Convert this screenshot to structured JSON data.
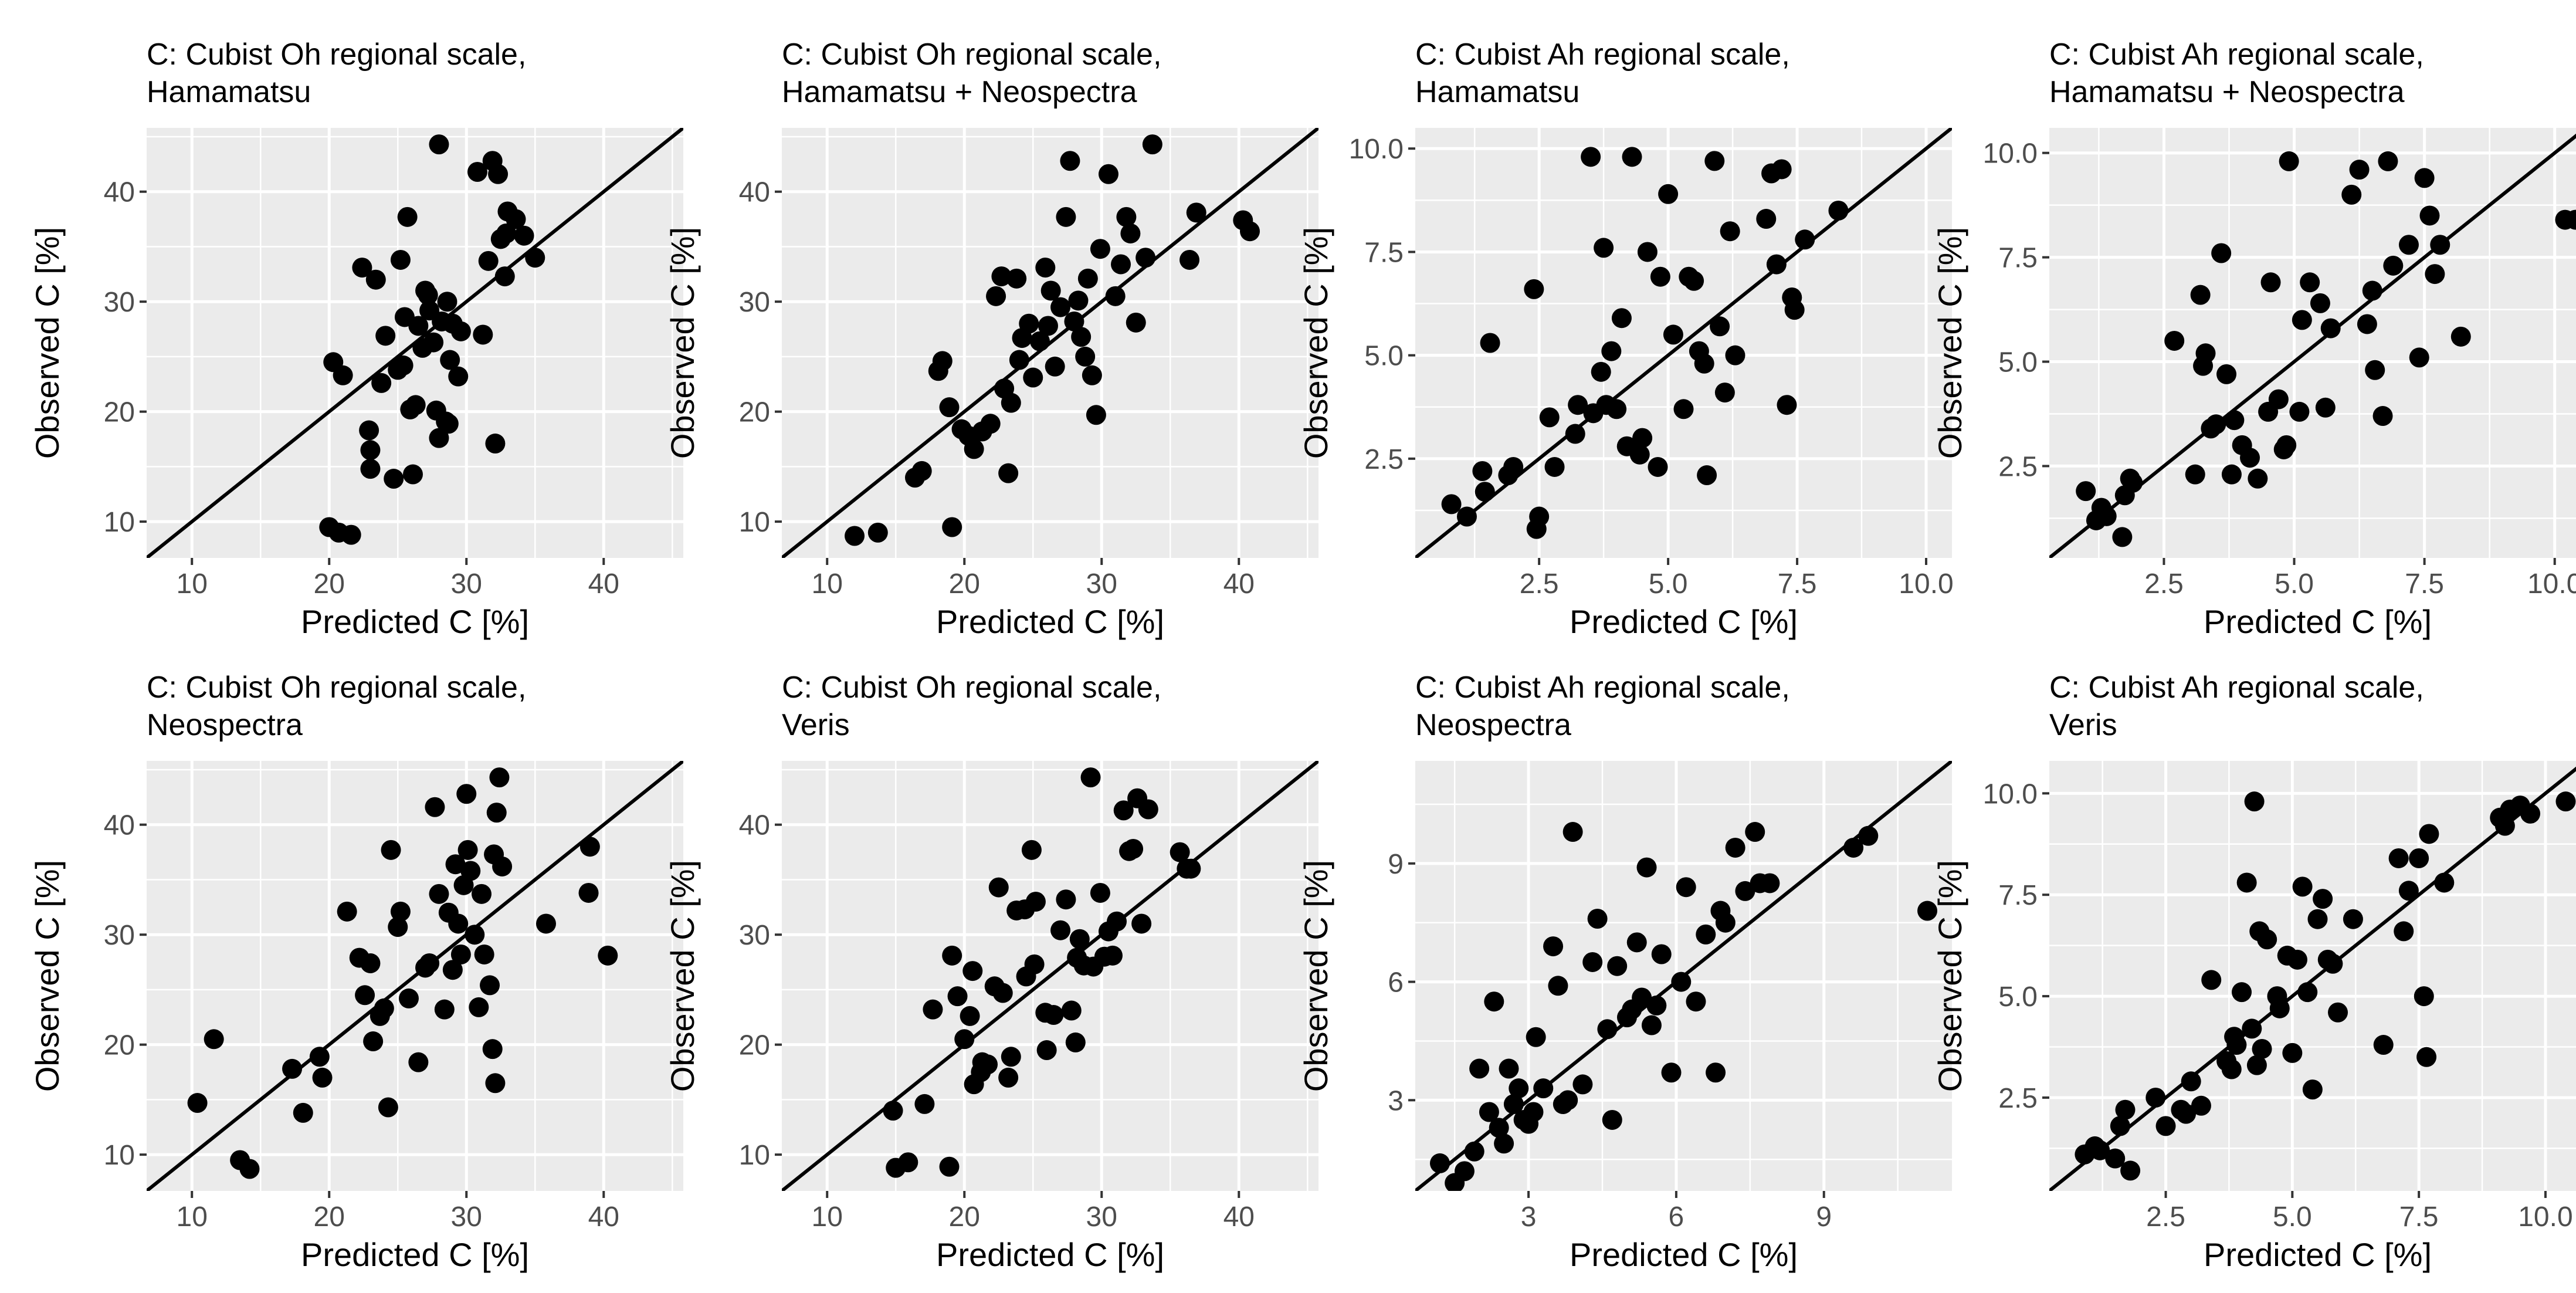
{
  "chart_data": [
    {
      "type": "scatter",
      "title_lines": [
        "C: Cubist Oh regional scale,",
        "Hamamatsu"
      ],
      "xlabel": "Predicted C [%]",
      "ylabel": "Observed C [%]",
      "xlim": [
        6.7,
        45.8
      ],
      "ylim": [
        6.7,
        45.8
      ],
      "xticks": [
        10,
        20,
        30,
        40
      ],
      "yticks": [
        10,
        20,
        30,
        40
      ],
      "xtick_labels": [
        "10",
        "20",
        "30",
        "40"
      ],
      "ytick_labels": [
        "10",
        "20",
        "30",
        "40"
      ],
      "identity_line": true,
      "x": [
        20.0,
        20.7,
        21.6,
        20.3,
        21.0,
        22.4,
        22.9,
        23.0,
        23.0,
        23.4,
        23.8,
        24.1,
        24.7,
        25.0,
        25.2,
        25.7,
        25.4,
        25.5,
        25.9,
        26.1,
        26.3,
        26.5,
        26.8,
        27.0,
        27.2,
        27.3,
        27.6,
        27.8,
        28.0,
        28.0,
        28.2,
        28.5,
        28.6,
        28.7,
        28.8,
        29.0,
        29.4,
        29.6,
        30.8,
        31.2,
        31.6,
        31.9,
        32.1,
        32.3,
        32.5,
        32.8,
        32.9,
        33.0,
        33.6,
        34.2,
        35.0
      ],
      "y": [
        9.5,
        9.0,
        8.8,
        24.5,
        23.3,
        33.1,
        18.3,
        16.5,
        14.8,
        32.0,
        22.6,
        26.9,
        13.9,
        23.8,
        33.8,
        37.7,
        24.2,
        28.6,
        20.2,
        14.3,
        20.6,
        27.8,
        25.8,
        31.0,
        30.6,
        29.2,
        26.3,
        20.1,
        17.6,
        44.3,
        28.2,
        19.1,
        30.0,
        18.9,
        24.7,
        28.0,
        23.2,
        27.3,
        41.8,
        27.0,
        33.7,
        42.8,
        17.1,
        41.6,
        35.7,
        32.3,
        36.2,
        38.2,
        37.5,
        36.0,
        34.0
      ]
    },
    {
      "type": "scatter",
      "title_lines": [
        "C: Cubist Oh regional scale,",
        "Hamamatsu + Neospectra"
      ],
      "xlabel": "Predicted C [%]",
      "ylabel": "Observed C [%]",
      "xlim": [
        6.7,
        45.8
      ],
      "ylim": [
        6.7,
        45.8
      ],
      "xticks": [
        10,
        20,
        30,
        40
      ],
      "yticks": [
        10,
        20,
        30,
        40
      ],
      "xtick_labels": [
        "10",
        "20",
        "30",
        "40"
      ],
      "ytick_labels": [
        "10",
        "20",
        "30",
        "40"
      ],
      "identity_line": true,
      "x": [
        12.0,
        13.7,
        16.4,
        16.9,
        18.1,
        18.4,
        18.9,
        19.1,
        19.8,
        20.3,
        20.7,
        21.3,
        21.9,
        22.3,
        22.7,
        22.9,
        23.2,
        23.4,
        23.8,
        24.0,
        24.2,
        24.7,
        25.0,
        25.5,
        25.9,
        26.1,
        26.3,
        26.6,
        27.0,
        27.4,
        27.7,
        28.0,
        28.3,
        28.5,
        28.8,
        29.0,
        29.3,
        29.6,
        29.9,
        30.5,
        31.0,
        31.4,
        31.8,
        32.1,
        32.5,
        33.2,
        33.7,
        36.4,
        36.9,
        40.3,
        40.8
      ],
      "y": [
        8.7,
        9.0,
        14.0,
        14.6,
        23.7,
        24.6,
        20.4,
        9.5,
        18.4,
        17.8,
        16.6,
        18.2,
        18.9,
        30.5,
        32.3,
        22.1,
        14.4,
        20.8,
        32.1,
        24.7,
        26.7,
        28.0,
        23.1,
        26.4,
        33.1,
        27.8,
        31.0,
        24.1,
        29.5,
        37.7,
        42.8,
        28.2,
        30.1,
        26.8,
        25.0,
        32.1,
        23.3,
        19.7,
        34.8,
        41.6,
        30.5,
        33.4,
        37.7,
        36.2,
        28.1,
        34.0,
        44.3,
        33.8,
        38.1,
        37.4,
        36.4
      ]
    },
    {
      "type": "scatter",
      "title_lines": [
        "C: Cubist Ah regional scale,",
        "Hamamatsu"
      ],
      "xlabel": "Predicted C [%]",
      "ylabel": "Observed C [%]",
      "xlim": [
        0.1,
        10.5
      ],
      "ylim": [
        0.1,
        10.5
      ],
      "xticks": [
        2.5,
        5.0,
        7.5,
        10.0
      ],
      "yticks": [
        2.5,
        5.0,
        7.5,
        10.0
      ],
      "xtick_labels": [
        "2.5",
        "5.0",
        "7.5",
        "10.0"
      ],
      "ytick_labels": [
        "2.5",
        "5.0",
        "7.5",
        "10.0"
      ],
      "identity_line": true,
      "x": [
        0.8,
        1.1,
        1.4,
        1.45,
        1.55,
        1.9,
        2.0,
        2.4,
        2.5,
        2.45,
        2.7,
        2.8,
        3.2,
        3.25,
        3.5,
        3.55,
        3.7,
        3.75,
        3.8,
        3.9,
        4.0,
        4.1,
        4.2,
        4.3,
        4.45,
        4.5,
        4.6,
        4.8,
        4.85,
        5.0,
        5.1,
        5.3,
        5.4,
        5.5,
        5.6,
        5.7,
        5.75,
        5.9,
        6.0,
        6.1,
        6.2,
        6.3,
        6.9,
        7.0,
        7.1,
        7.2,
        7.3,
        7.4,
        7.45,
        7.65,
        8.3
      ],
      "y": [
        1.4,
        1.1,
        2.2,
        1.7,
        5.3,
        2.1,
        2.3,
        6.6,
        1.1,
        0.8,
        3.5,
        2.3,
        3.1,
        3.8,
        9.8,
        3.6,
        4.6,
        7.6,
        3.8,
        5.1,
        3.7,
        5.9,
        2.8,
        9.8,
        2.6,
        3.0,
        7.5,
        2.3,
        6.9,
        8.9,
        5.5,
        3.7,
        6.9,
        6.8,
        5.1,
        4.8,
        2.1,
        9.7,
        5.7,
        4.1,
        8.0,
        5.0,
        8.3,
        9.4,
        7.2,
        9.5,
        3.8,
        6.4,
        6.1,
        7.8,
        8.5
      ]
    },
    {
      "type": "scatter",
      "title_lines": [
        "C: Cubist Ah regional scale,",
        "Hamamatsu + Neospectra"
      ],
      "xlabel": "Predicted C [%]",
      "ylabel": "Observed C [%]",
      "xlim": [
        0.3,
        10.6
      ],
      "ylim": [
        0.3,
        10.6
      ],
      "xticks": [
        2.5,
        5.0,
        7.5,
        10.0
      ],
      "yticks": [
        2.5,
        5.0,
        7.5,
        10.0
      ],
      "xtick_labels": [
        "2.5",
        "5.0",
        "7.5",
        "10.0"
      ],
      "ytick_labels": [
        "2.5",
        "5.0",
        "7.5",
        "10.0"
      ],
      "identity_line": true,
      "x": [
        1.0,
        1.2,
        1.3,
        1.4,
        1.7,
        1.75,
        1.85,
        1.9,
        2.7,
        3.1,
        3.2,
        3.25,
        3.3,
        3.4,
        3.5,
        3.6,
        3.7,
        3.8,
        3.85,
        4.0,
        4.15,
        4.3,
        4.5,
        4.55,
        4.7,
        4.8,
        4.85,
        4.9,
        5.1,
        5.15,
        5.3,
        5.5,
        5.6,
        5.7,
        6.1,
        6.25,
        6.4,
        6.5,
        6.55,
        6.7,
        6.8,
        6.9,
        7.2,
        7.4,
        7.5,
        7.6,
        7.7,
        7.8,
        8.2,
        10.2,
        10.4
      ],
      "y": [
        1.9,
        1.2,
        1.5,
        1.3,
        0.8,
        1.8,
        2.2,
        2.1,
        5.5,
        2.3,
        6.6,
        4.9,
        5.2,
        3.4,
        3.5,
        7.6,
        4.7,
        2.3,
        3.6,
        3.0,
        2.7,
        2.2,
        3.8,
        6.9,
        4.1,
        2.9,
        3.0,
        9.8,
        3.8,
        6.0,
        6.9,
        6.4,
        3.9,
        5.8,
        9.0,
        9.6,
        5.9,
        6.7,
        4.8,
        3.7,
        9.8,
        7.3,
        7.8,
        5.1,
        9.4,
        8.5,
        7.1,
        7.8,
        5.6,
        8.4,
        8.4
      ]
    },
    {
      "type": "scatter",
      "title_lines": [
        "C: Cubist Oh regional scale,",
        "Neospectra"
      ],
      "xlabel": "Predicted C [%]",
      "ylabel": "Observed C [%]",
      "xlim": [
        6.7,
        45.8
      ],
      "ylim": [
        6.7,
        45.8
      ],
      "xticks": [
        10,
        20,
        30,
        40
      ],
      "yticks": [
        10,
        20,
        30,
        40
      ],
      "xtick_labels": [
        "10",
        "20",
        "30",
        "40"
      ],
      "ytick_labels": [
        "10",
        "20",
        "30",
        "40"
      ],
      "identity_line": true,
      "x": [
        10.4,
        11.6,
        13.5,
        14.2,
        17.3,
        18.1,
        19.3,
        19.5,
        21.3,
        22.2,
        22.6,
        23.0,
        23.2,
        23.7,
        24.0,
        24.3,
        24.5,
        25.0,
        25.2,
        25.8,
        26.5,
        27.0,
        27.3,
        27.7,
        28.0,
        28.4,
        28.7,
        29.0,
        29.2,
        29.4,
        29.6,
        29.8,
        30.0,
        30.1,
        30.3,
        30.6,
        30.9,
        31.1,
        31.3,
        31.7,
        31.9,
        32.0,
        32.1,
        32.2,
        32.4,
        32.6,
        35.8,
        38.9,
        39.0,
        40.3
      ],
      "y": [
        14.7,
        20.5,
        9.5,
        8.7,
        17.8,
        13.8,
        18.9,
        17.0,
        32.1,
        27.9,
        24.5,
        27.4,
        20.3,
        22.6,
        23.3,
        14.3,
        37.7,
        30.7,
        32.1,
        24.2,
        18.4,
        27.0,
        27.4,
        41.6,
        33.7,
        23.2,
        32.0,
        26.8,
        36.4,
        31.0,
        28.2,
        34.5,
        42.8,
        37.7,
        35.8,
        30.0,
        23.4,
        33.7,
        28.2,
        25.4,
        19.6,
        37.3,
        16.5,
        41.1,
        44.3,
        36.2,
        31.0,
        33.8,
        38.0,
        28.1
      ]
    },
    {
      "type": "scatter",
      "title_lines": [
        "C: Cubist Oh regional scale,",
        "Veris"
      ],
      "xlabel": "Predicted C [%]",
      "ylabel": "Observed C [%]",
      "xlim": [
        6.7,
        45.8
      ],
      "ylim": [
        6.7,
        45.8
      ],
      "xticks": [
        10,
        20,
        30,
        40
      ],
      "yticks": [
        10,
        20,
        30,
        40
      ],
      "xtick_labels": [
        "10",
        "20",
        "30",
        "40"
      ],
      "ytick_labels": [
        "10",
        "20",
        "30",
        "40"
      ],
      "identity_line": true,
      "x": [
        14.8,
        15.0,
        15.9,
        17.1,
        17.7,
        18.9,
        19.1,
        19.5,
        20.0,
        20.4,
        20.6,
        20.7,
        21.2,
        21.3,
        21.7,
        22.2,
        22.5,
        22.8,
        23.2,
        23.4,
        23.8,
        24.4,
        24.5,
        24.9,
        25.1,
        25.2,
        25.9,
        26.0,
        26.5,
        27.0,
        27.4,
        27.8,
        28.1,
        28.2,
        28.4,
        28.7,
        29.2,
        29.4,
        29.9,
        30.2,
        30.5,
        30.8,
        31.1,
        31.6,
        32.0,
        32.3,
        32.6,
        32.9,
        33.4,
        35.7,
        36.2,
        36.5
      ],
      "y": [
        14.0,
        8.8,
        9.3,
        14.6,
        23.2,
        8.9,
        28.1,
        24.4,
        20.5,
        22.6,
        26.7,
        16.4,
        17.5,
        18.4,
        18.2,
        25.3,
        34.3,
        24.7,
        17.0,
        18.9,
        32.2,
        32.3,
        26.2,
        37.7,
        27.3,
        33.0,
        22.9,
        19.5,
        22.7,
        30.4,
        33.2,
        23.1,
        20.2,
        27.9,
        29.6,
        27.2,
        44.3,
        27.1,
        33.8,
        28.0,
        30.3,
        28.1,
        31.2,
        41.3,
        37.6,
        37.8,
        42.4,
        31.0,
        41.4,
        37.5,
        36.0,
        36.0
      ]
    },
    {
      "type": "scatter",
      "title_lines": [
        "C: Cubist Ah regional scale,",
        "Neospectra"
      ],
      "xlabel": "Predicted C [%]",
      "ylabel": "Observed C [%]",
      "xlim": [
        0.7,
        11.6
      ],
      "ylim": [
        0.7,
        11.6
      ],
      "xticks": [
        3,
        6,
        9
      ],
      "yticks": [
        3,
        6,
        9
      ],
      "xtick_labels": [
        "3",
        "6",
        "9"
      ],
      "ytick_labels": [
        "3",
        "6",
        "9"
      ],
      "identity_line": true,
      "x": [
        1.2,
        1.5,
        1.7,
        1.9,
        2.0,
        2.2,
        2.3,
        2.4,
        2.5,
        2.6,
        2.7,
        2.8,
        2.9,
        3.0,
        3.1,
        3.15,
        3.3,
        3.5,
        3.6,
        3.7,
        3.8,
        3.9,
        4.1,
        4.3,
        4.4,
        4.6,
        4.7,
        4.8,
        5.0,
        5.1,
        5.2,
        5.3,
        5.4,
        5.5,
        5.6,
        5.7,
        5.9,
        6.1,
        6.2,
        6.4,
        6.6,
        6.8,
        6.9,
        7.0,
        7.2,
        7.4,
        7.6,
        7.7,
        7.9,
        9.6,
        9.9,
        11.1
      ],
      "y": [
        1.4,
        0.9,
        1.2,
        1.7,
        3.8,
        2.7,
        5.5,
        2.3,
        1.9,
        3.8,
        2.9,
        3.3,
        2.5,
        2.4,
        2.7,
        4.6,
        3.3,
        6.9,
        5.9,
        2.9,
        3.0,
        9.8,
        3.4,
        6.5,
        7.6,
        4.8,
        2.5,
        6.4,
        5.1,
        5.3,
        7.0,
        5.6,
        8.9,
        4.9,
        5.4,
        6.7,
        3.7,
        6.0,
        8.4,
        5.5,
        7.2,
        3.7,
        7.8,
        7.5,
        9.4,
        8.3,
        9.8,
        8.5,
        8.5,
        9.4,
        9.7,
        7.8
      ]
    },
    {
      "type": "scatter",
      "title_lines": [
        "C: Cubist Ah regional scale,",
        "Veris"
      ],
      "xlabel": "Predicted C [%]",
      "ylabel": "Observed C [%]",
      "xlim": [
        0.2,
        10.8
      ],
      "ylim": [
        0.2,
        10.8
      ],
      "xticks": [
        2.5,
        5.0,
        7.5,
        10.0
      ],
      "yticks": [
        2.5,
        5.0,
        7.5,
        10.0
      ],
      "xtick_labels": [
        "2.5",
        "5.0",
        "7.5",
        "10.0"
      ],
      "ytick_labels": [
        "2.5",
        "5.0",
        "7.5",
        "10.0"
      ],
      "identity_line": true,
      "x": [
        0.9,
        1.1,
        1.2,
        1.5,
        1.6,
        1.7,
        1.8,
        2.3,
        2.5,
        2.8,
        2.9,
        3.0,
        3.2,
        3.4,
        3.7,
        3.8,
        3.85,
        3.9,
        4.0,
        4.1,
        4.2,
        4.25,
        4.3,
        4.35,
        4.4,
        4.5,
        4.7,
        4.75,
        4.9,
        5.0,
        5.1,
        5.2,
        5.3,
        5.4,
        5.5,
        5.6,
        5.7,
        5.8,
        5.9,
        6.2,
        6.8,
        7.1,
        7.2,
        7.3,
        7.5,
        7.6,
        7.65,
        7.7,
        8.0,
        9.1,
        9.2,
        9.3,
        9.5,
        9.7,
        10.4
      ],
      "y": [
        1.1,
        1.3,
        1.2,
        1.0,
        1.8,
        2.2,
        0.7,
        2.5,
        1.8,
        2.2,
        2.1,
        2.9,
        2.3,
        5.4,
        3.4,
        3.2,
        4.0,
        3.8,
        5.1,
        7.8,
        4.2,
        9.8,
        3.3,
        6.6,
        3.7,
        6.4,
        5.0,
        4.7,
        6.0,
        3.6,
        5.9,
        7.7,
        5.1,
        2.7,
        6.9,
        7.4,
        5.9,
        5.8,
        4.6,
        6.9,
        3.8,
        8.4,
        6.6,
        7.6,
        8.4,
        5.0,
        3.5,
        9.0,
        7.8,
        9.4,
        9.2,
        9.6,
        9.7,
        9.5,
        9.8
      ]
    }
  ]
}
